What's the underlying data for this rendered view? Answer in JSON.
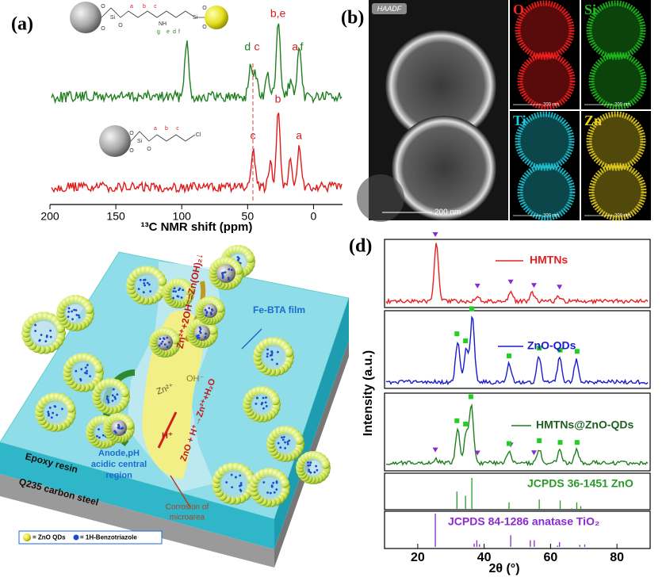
{
  "panel_a": {
    "label": "(a)",
    "x_title": "¹³C NMR shift (ppm)",
    "xlim": [
      200,
      -22
    ],
    "xticks": [
      200,
      150,
      100,
      50,
      0
    ],
    "top_molecule": [
      "O",
      "Si",
      "O",
      "O",
      "a",
      "b",
      "c",
      "NH",
      "d",
      "e",
      "f",
      "g",
      "Si",
      "O",
      "O"
    ],
    "bottom_molecule": [
      "O",
      "Si",
      "O",
      "O",
      "a",
      "b",
      "c",
      "Cl"
    ],
    "top_spectrum": {
      "color": "#1f7f1f",
      "peaks": [
        {
          "x": 97,
          "height": 0.78
        },
        {
          "x": 48,
          "height": 0.42
        },
        {
          "x": 44,
          "height": 0.3
        },
        {
          "x": 35,
          "height": 0.28
        },
        {
          "x": 27,
          "height": 1.0
        },
        {
          "x": 18,
          "height": 0.2
        },
        {
          "x": 11,
          "height": 0.62
        }
      ],
      "peak_labels": [
        {
          "text": "d",
          "x": 50,
          "color": "#1f7f1f"
        },
        {
          "text": "c",
          "x": 43,
          "color": "#d42020"
        },
        {
          "text": "b,e",
          "x": 27,
          "color": "#d42020"
        },
        {
          "text": "a",
          "x": 14,
          "color": "#d42020"
        },
        {
          "text": "f",
          "x": 9,
          "color": "#1f7f1f"
        }
      ]
    },
    "bottom_spectrum": {
      "color": "#e01a1a",
      "peaks": [
        {
          "x": 46,
          "height": 0.42
        },
        {
          "x": 33,
          "height": 0.3
        },
        {
          "x": 27,
          "height": 1.0
        },
        {
          "x": 18,
          "height": 0.33
        },
        {
          "x": 11,
          "height": 0.55
        }
      ],
      "peak_labels": [
        {
          "text": "c",
          "x": 46,
          "color": "#d42020"
        },
        {
          "text": "b",
          "x": 27,
          "color": "#d42020"
        },
        {
          "text": "a",
          "x": 11,
          "color": "#d42020"
        }
      ]
    },
    "dashed_line_x": 46
  },
  "panel_b": {
    "label": "(b)",
    "badge": "HAADF",
    "scale": "200 nm",
    "maps": [
      {
        "element": "O",
        "color": "#ff2020"
      },
      {
        "element": "Si",
        "color": "#20c020"
      },
      {
        "element": "Ti",
        "color": "#20c8d8"
      },
      {
        "element": "Zn",
        "color": "#e8d020"
      }
    ]
  },
  "panel_c": {
    "reaction_top": "Zn²⁺+2OH⁻=Zn(OH)₂↓",
    "film": "Fe-BTA film",
    "zn_ion": "Zn²⁺",
    "oh_ion": "OH⁻",
    "reaction_mid": "ZnO + H⁺→Zn²⁺+H₂O",
    "h_ion": "H⁺",
    "anode": [
      "Anode,pH",
      "acidic central",
      "region"
    ],
    "corrosion": [
      "Corrosion of",
      "microarea"
    ],
    "epoxy": "Epoxy resin",
    "steel": "Q235 carbon steel",
    "legend": [
      "= ZnO QDs",
      "= 1H-Benzotriazole"
    ]
  },
  "panel_d": {
    "label": "(d)",
    "x_title": "2θ (°)",
    "y_title": "Intensity (a.u.)",
    "xlim": [
      10,
      90
    ],
    "xticks": [
      20,
      40,
      60,
      80
    ],
    "series": [
      {
        "name": "HMTNs",
        "color": "#e82020",
        "peaks": [
          {
            "x": 25.3,
            "height": 1.0
          },
          {
            "x": 37.9,
            "height": 0.1
          },
          {
            "x": 48.0,
            "height": 0.17
          },
          {
            "x": 54.5,
            "height": 0.15
          },
          {
            "x": 62.7,
            "height": 0.08
          }
        ],
        "anatase_marks": [
          25.3,
          38,
          48,
          55,
          62.7
        ],
        "zno_marks": []
      },
      {
        "name": "ZnO-QDs",
        "color": "#1a1ad0",
        "peaks": [
          {
            "x": 31.8,
            "height": 0.62
          },
          {
            "x": 34.4,
            "height": 0.5
          },
          {
            "x": 36.3,
            "height": 1.0
          },
          {
            "x": 47.5,
            "height": 0.28
          },
          {
            "x": 56.6,
            "height": 0.4
          },
          {
            "x": 62.9,
            "height": 0.37
          },
          {
            "x": 68.0,
            "height": 0.35
          }
        ],
        "anatase_marks": [],
        "zno_marks": [
          31.8,
          34.4,
          36.3,
          47.5,
          56.6,
          62.9,
          68.0
        ]
      },
      {
        "name": "HMTNs@ZnO-QDs",
        "color": "#1f7f1f",
        "peaks": [
          {
            "x": 25.3,
            "height": 0.06
          },
          {
            "x": 31.8,
            "height": 0.6
          },
          {
            "x": 34.4,
            "height": 0.5
          },
          {
            "x": 36.0,
            "height": 1.0
          },
          {
            "x": 47.5,
            "height": 0.2
          },
          {
            "x": 56.6,
            "height": 0.25
          },
          {
            "x": 62.9,
            "height": 0.22
          },
          {
            "x": 68.0,
            "height": 0.22
          }
        ],
        "anatase_marks": [
          25.3,
          38,
          48,
          55
        ],
        "zno_marks": [
          31.8,
          34.4,
          36.0,
          47.5,
          56.6,
          62.9,
          68.0
        ]
      }
    ],
    "references": [
      {
        "name": "JCPDS 36-1451 ZnO",
        "color": "#2a9a2a",
        "lines": [
          {
            "x": 31.8,
            "height": 0.57
          },
          {
            "x": 34.4,
            "height": 0.44
          },
          {
            "x": 36.3,
            "height": 1.0
          },
          {
            "x": 47.5,
            "height": 0.23
          },
          {
            "x": 56.6,
            "height": 0.32
          },
          {
            "x": 62.9,
            "height": 0.29
          },
          {
            "x": 66.4,
            "height": 0.04
          },
          {
            "x": 67.9,
            "height": 0.23
          },
          {
            "x": 69.1,
            "height": 0.11
          }
        ]
      },
      {
        "name": "JCPDS 84-1286 anatase TiO₂",
        "color": "#8a2ad0",
        "lines": [
          {
            "x": 25.3,
            "height": 1.0
          },
          {
            "x": 37.0,
            "height": 0.1
          },
          {
            "x": 37.8,
            "height": 0.2
          },
          {
            "x": 38.6,
            "height": 0.08
          },
          {
            "x": 48.0,
            "height": 0.35
          },
          {
            "x": 53.9,
            "height": 0.2
          },
          {
            "x": 55.1,
            "height": 0.2
          },
          {
            "x": 62.1,
            "height": 0.04
          },
          {
            "x": 62.7,
            "height": 0.14
          },
          {
            "x": 68.8,
            "height": 0.06
          },
          {
            "x": 70.3,
            "height": 0.07
          }
        ]
      }
    ],
    "anatase_marker_color": "#8a2ad0",
    "zno_marker_color": "#20d020"
  }
}
